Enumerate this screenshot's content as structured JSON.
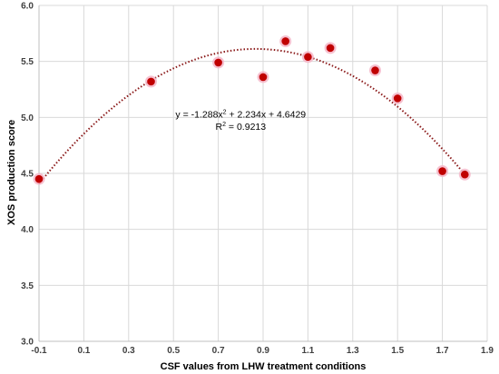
{
  "chart_data": {
    "type": "scatter",
    "title": "",
    "xlabel": "CSF values from LHW treatment conditions",
    "ylabel": "XOS production score",
    "xlim": [
      -0.1,
      1.9
    ],
    "ylim": [
      3.0,
      6.0
    ],
    "x_ticks": [
      "-0.1",
      "0.1",
      "0.3",
      "0.5",
      "0.7",
      "0.9",
      "1.1",
      "1.3",
      "1.5",
      "1.7",
      "1.9"
    ],
    "y_ticks": [
      "3.0",
      "3.5",
      "4.0",
      "4.5",
      "5.0",
      "5.5",
      "6.0"
    ],
    "grid": true,
    "legend": "none",
    "series": [
      {
        "points": [
          {
            "x": -0.1,
            "y": 4.45
          },
          {
            "x": 0.4,
            "y": 5.32
          },
          {
            "x": 0.7,
            "y": 5.49
          },
          {
            "x": 0.9,
            "y": 5.36
          },
          {
            "x": 1.0,
            "y": 5.68
          },
          {
            "x": 1.1,
            "y": 5.54
          },
          {
            "x": 1.2,
            "y": 5.62
          },
          {
            "x": 1.4,
            "y": 5.42
          },
          {
            "x": 1.5,
            "y": 5.17
          },
          {
            "x": 1.7,
            "y": 4.52
          },
          {
            "x": 1.8,
            "y": 4.49
          }
        ]
      }
    ],
    "trendline": {
      "type": "polynomial-2",
      "coefficients": {
        "a": -1.288,
        "b": 2.234,
        "c": 4.6429
      },
      "x_range": [
        -0.1,
        1.8
      ],
      "style": "dotted"
    },
    "annotations": {
      "equation_prefix": "y = -1.288x",
      "equation_suffix": " + 2.234x + 4.6429",
      "r2_prefix": "R",
      "r2_suffix": " = 0.9213",
      "superscript": "2",
      "equation_anchor": {
        "x": 0.8,
        "y": 5.0
      },
      "r2_anchor": {
        "x": 0.8,
        "y": 4.89
      }
    },
    "colors": {
      "marker": "#c00000",
      "marker_halo": "#f4b6c8",
      "trendline": "#8b1a1a",
      "grid": "#d9d9d9",
      "axis": "#bfbfbf"
    }
  }
}
